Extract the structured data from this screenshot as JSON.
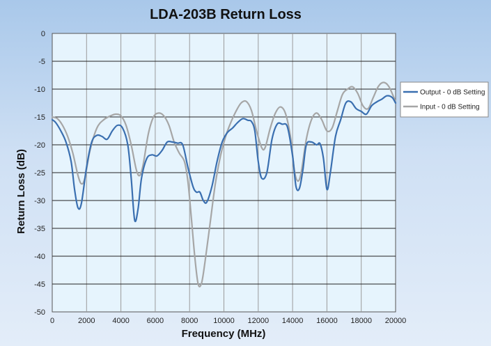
{
  "chart_data": {
    "type": "line",
    "title": "LDA-203B Return Loss",
    "xlabel": "Frequency (MHz)",
    "ylabel": "Return Loss (dB)",
    "xlim": [
      0,
      20000
    ],
    "ylim": [
      -50,
      0
    ],
    "xticks": [
      0,
      2000,
      4000,
      6000,
      8000,
      10000,
      12000,
      14000,
      16000,
      18000,
      20000
    ],
    "yticks": [
      0,
      -5,
      -10,
      -15,
      -20,
      -25,
      -30,
      -35,
      -40,
      -45,
      -50
    ],
    "grid": true,
    "legend_position": "right",
    "series": [
      {
        "name": "Output - 0 dB Setting",
        "color": "#3a6fb0",
        "x": [
          0,
          200,
          500,
          800,
          1100,
          1300,
          1500,
          1700,
          2000,
          2300,
          2600,
          2900,
          3200,
          3500,
          3800,
          4100,
          4400,
          4600,
          4800,
          5000,
          5200,
          5500,
          5800,
          6100,
          6400,
          6700,
          7000,
          7300,
          7600,
          7900,
          8200,
          8400,
          8600,
          8800,
          9000,
          9300,
          9600,
          9900,
          10200,
          10500,
          10800,
          11100,
          11400,
          11600,
          11800,
          12000,
          12200,
          12500,
          12800,
          13100,
          13400,
          13700,
          14000,
          14200,
          14400,
          14600,
          14800,
          15100,
          15400,
          15600,
          15800,
          16000,
          16200,
          16500,
          16800,
          17100,
          17400,
          17700,
          18000,
          18300,
          18600,
          18900,
          19200,
          19500,
          19800,
          20000
        ],
        "y": [
          -15.5,
          -16.0,
          -17.5,
          -19.5,
          -23.0,
          -28.0,
          -31.3,
          -30.5,
          -24.0,
          -19.5,
          -18.3,
          -18.5,
          -19.0,
          -17.5,
          -16.5,
          -17.0,
          -20.0,
          -26.0,
          -33.5,
          -31.5,
          -26.0,
          -22.5,
          -21.8,
          -22.0,
          -21.0,
          -19.5,
          -19.5,
          -19.7,
          -20.0,
          -24.0,
          -27.5,
          -28.5,
          -28.5,
          -30.0,
          -30.3,
          -27.5,
          -23.0,
          -19.5,
          -17.8,
          -17.0,
          -16.0,
          -15.3,
          -15.6,
          -15.8,
          -17.5,
          -23.0,
          -26.0,
          -25.0,
          -19.0,
          -16.3,
          -16.3,
          -16.8,
          -22.0,
          -27.5,
          -27.8,
          -24.5,
          -20.0,
          -19.5,
          -20.0,
          -19.8,
          -22.5,
          -28.0,
          -25.0,
          -18.5,
          -15.5,
          -12.5,
          -12.3,
          -13.5,
          -14.0,
          -14.5,
          -13.0,
          -12.3,
          -11.8,
          -11.2,
          -11.5,
          -12.5
        ]
      },
      {
        "name": "Input - 0 dB Setting",
        "color": "#a6a6a6",
        "x": [
          0,
          300,
          600,
          900,
          1200,
          1500,
          1700,
          1900,
          2200,
          2600,
          3000,
          3400,
          3700,
          4000,
          4300,
          4600,
          4900,
          5100,
          5300,
          5600,
          5900,
          6200,
          6500,
          6800,
          7100,
          7400,
          7700,
          7900,
          8100,
          8300,
          8500,
          8700,
          8900,
          9200,
          9500,
          9800,
          10100,
          10400,
          10700,
          11000,
          11300,
          11600,
          11900,
          12200,
          12400,
          12700,
          13000,
          13300,
          13600,
          13900,
          14100,
          14300,
          14500,
          14800,
          15100,
          15400,
          15700,
          16000,
          16300,
          16600,
          16900,
          17200,
          17500,
          17800,
          18100,
          18400,
          18700,
          19000,
          19300,
          19600,
          19900,
          20000
        ],
        "y": [
          -15.0,
          -15.3,
          -16.5,
          -18.5,
          -21.5,
          -25.5,
          -27.0,
          -26.0,
          -21.0,
          -17.0,
          -15.5,
          -14.8,
          -14.5,
          -14.8,
          -16.5,
          -20.0,
          -24.5,
          -25.5,
          -23.5,
          -18.0,
          -15.0,
          -14.3,
          -14.8,
          -16.5,
          -19.5,
          -21.5,
          -23.0,
          -26.5,
          -33.0,
          -40.0,
          -45.0,
          -44.8,
          -41.0,
          -34.0,
          -27.0,
          -22.0,
          -18.5,
          -16.0,
          -14.0,
          -12.5,
          -12.2,
          -13.8,
          -17.5,
          -20.5,
          -20.5,
          -17.0,
          -14.3,
          -13.2,
          -14.5,
          -19.0,
          -24.5,
          -26.5,
          -25.0,
          -19.0,
          -15.5,
          -14.3,
          -15.5,
          -17.5,
          -17.0,
          -14.0,
          -11.0,
          -10.0,
          -9.6,
          -10.8,
          -13.0,
          -13.5,
          -11.5,
          -9.5,
          -8.8,
          -9.5,
          -11.5,
          -12.3
        ]
      }
    ]
  }
}
